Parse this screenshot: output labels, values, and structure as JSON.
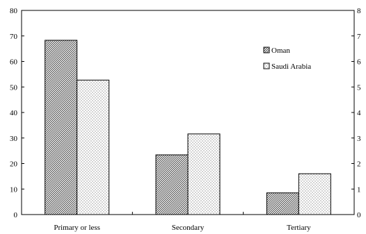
{
  "chart_data": {
    "type": "bar",
    "categories": [
      "Primary or less",
      "Secondary",
      "Tertiary"
    ],
    "series": [
      {
        "name": "Oman",
        "values": [
          68.3,
          23.4,
          8.5
        ],
        "pattern": "diagonal-hatch"
      },
      {
        "name": "Saudi Arabia",
        "values": [
          52.7,
          31.6,
          16.0
        ],
        "pattern": "dots"
      }
    ],
    "ylim": [
      0,
      80
    ],
    "yticks": [
      0,
      10,
      20,
      30,
      40,
      50,
      60,
      70,
      80
    ],
    "right_yticks": [
      "0",
      "1",
      "2",
      "3",
      "4",
      "5",
      "6",
      "7",
      "8"
    ],
    "legend_position": "top-right",
    "grid": false,
    "title": "",
    "xlabel": "",
    "ylabel": ""
  }
}
